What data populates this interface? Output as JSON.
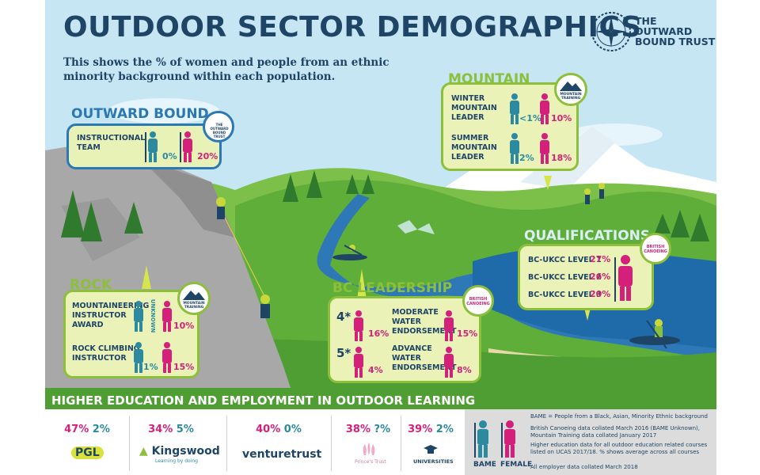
{
  "title": "OUTDOOR SECTOR DEMOGRAPHICS",
  "subtitle": "This shows the % of women and people from an ethnic minority background within each population.",
  "logo": {
    "line1": "THE",
    "line2": "OUTWARD",
    "line3": "BOUND TRUST",
    "icon": "compass-rose-icon"
  },
  "sections": {
    "outward_bound": {
      "heading": "OUTWARD BOUND",
      "badge_line1": "THE OUTWARD",
      "badge_line2": "BOUND TRUST",
      "rows": [
        {
          "label_line1": "INSTRUCTIONAL",
          "label_line2": "TEAM",
          "bame": "0%",
          "female": "20%"
        }
      ]
    },
    "mountain": {
      "heading": "MOUNTAIN",
      "badge_line1": "MOUNTAIN",
      "badge_line2": "TRAINING",
      "rows": [
        {
          "label_line1": "WINTER",
          "label_line2": "MOUNTAIN",
          "label_line3": "LEADER",
          "bame": "<1%",
          "female": "10%"
        },
        {
          "label_line1": "SUMMER",
          "label_line2": "MOUNTAIN",
          "label_line3": "LEADER",
          "bame": "2%",
          "female": "18%"
        }
      ]
    },
    "rock": {
      "heading": "ROCK",
      "badge_line1": "MOUNTAIN",
      "badge_line2": "TRAINING",
      "rows": [
        {
          "label_line1": "MOUNTAINEERING",
          "label_line2": "INSTRUCTOR",
          "label_line3": "AWARD",
          "bame": "UNKNOWN",
          "female": "10%"
        },
        {
          "label_line1": "ROCK CLIMBING",
          "label_line2": "INSTRUCTOR",
          "bame": "1%",
          "female": "15%"
        }
      ]
    },
    "bc_leadership": {
      "heading": "BC LEADERSHIP",
      "badge": "BRITISH CANOEING",
      "rows": [
        {
          "star": "4*",
          "star_female": "16%",
          "label_line1": "MODERATE",
          "label_line2": "WATER",
          "label_line3": "ENDORSEMENT",
          "female": "15%"
        },
        {
          "star": "5*",
          "star_female": "4%",
          "label_line1": "ADVANCE",
          "label_line2": "WATER",
          "label_line3": "ENDORSEMENT",
          "female": "8%"
        }
      ]
    },
    "qualifications": {
      "heading": "QUALIFICATIONS",
      "badge": "BRITISH CANOEING",
      "rows": [
        {
          "label": "BC-UKCC LEVEL 1",
          "female": "27%"
        },
        {
          "label": "BC-UKCC LEVEL 2",
          "female": "26%"
        },
        {
          "label": "BC-UKCC LEVEL 3",
          "female": "20%"
        }
      ]
    }
  },
  "higher_education": {
    "heading": "HIGHER EDUCATION AND EMPLOYMENT IN OUTDOOR LEARNING",
    "employers": [
      {
        "female": "47%",
        "bame": "2%",
        "name": "PGL"
      },
      {
        "female": "34%",
        "bame": "5%",
        "name": "Kingswood",
        "tagline": "Learning by doing"
      },
      {
        "female": "40%",
        "bame": "0%",
        "name": "venturetrust"
      },
      {
        "female": "38%",
        "bame": "?%",
        "name": "Prince's Trust"
      },
      {
        "female": "39%",
        "bame": "2%",
        "name": "UNIVERSITIES"
      }
    ]
  },
  "legend": {
    "bame_definition": "BAME = People from a Black, Asian, Minority Ethnic background",
    "note1": "British Canoeing data collated March 2016 (BAME Unknown), Mountain Training data collated January 2017",
    "note2": "Higher education data for all outdoor education related courses listed on UCAS 2017/18. % shows average across all courses",
    "note3": "All employer data collated March 2018",
    "bame_label": "BAME",
    "female_label": "FEMALE"
  },
  "colors": {
    "bame": "#2b8aa0",
    "female": "#d4207a",
    "navy": "#1e4466",
    "green": "#8cbf3a",
    "blue": "#2a78b6"
  }
}
